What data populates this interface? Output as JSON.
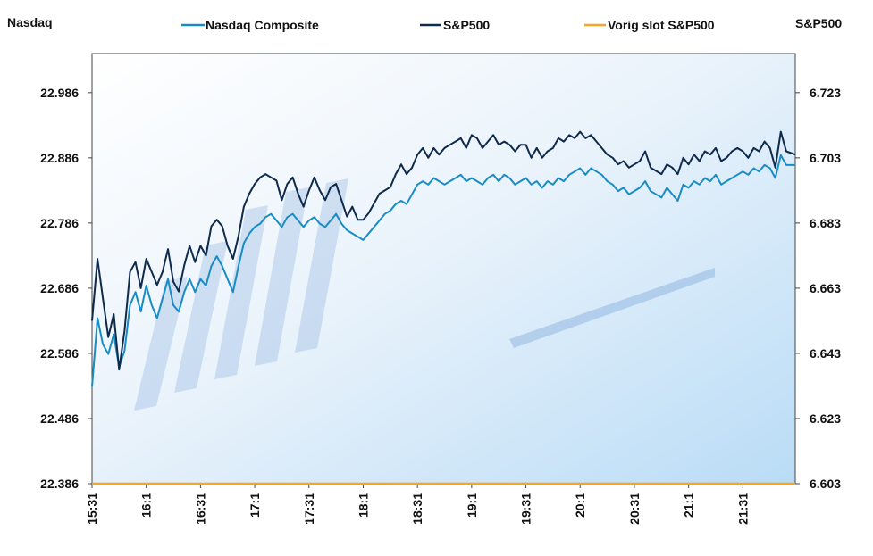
{
  "chart_data": {
    "type": "line",
    "title": "",
    "left_axis_label": "Nasdaq",
    "right_axis_label": "S&P500",
    "legend_position": "top",
    "left_ylim": [
      22386,
      23046
    ],
    "left_ticks": [
      "22.386",
      "22.486",
      "22.586",
      "22.686",
      "22.786",
      "22.886",
      "22.986"
    ],
    "right_ylim": [
      6603,
      6735
    ],
    "right_ticks": [
      "6.603",
      "6.623",
      "6.643",
      "6.663",
      "6.683",
      "6.703",
      "6.723"
    ],
    "x_range": [
      "15:31",
      "22:00"
    ],
    "x_ticks": [
      "15:31",
      "16:1",
      "16:31",
      "17:1",
      "17:31",
      "18:1",
      "18:31",
      "19:1",
      "19:31",
      "20:1",
      "20:31",
      "21:1",
      "21:31"
    ],
    "series": [
      {
        "name": "Nasdaq Composite",
        "axis": "left",
        "color": "#1a8cc4",
        "points": [
          [
            "15:31",
            22535
          ],
          [
            "15:34",
            22640
          ],
          [
            "15:37",
            22600
          ],
          [
            "15:40",
            22585
          ],
          [
            "15:43",
            22615
          ],
          [
            "15:46",
            22565
          ],
          [
            "15:49",
            22590
          ],
          [
            "15:52",
            22660
          ],
          [
            "15:55",
            22680
          ],
          [
            "15:58",
            22650
          ],
          [
            "16:01",
            22690
          ],
          [
            "16:04",
            22660
          ],
          [
            "16:07",
            22640
          ],
          [
            "16:10",
            22670
          ],
          [
            "16:13",
            22700
          ],
          [
            "16:16",
            22660
          ],
          [
            "16:19",
            22650
          ],
          [
            "16:22",
            22680
          ],
          [
            "16:25",
            22700
          ],
          [
            "16:28",
            22680
          ],
          [
            "16:31",
            22700
          ],
          [
            "16:34",
            22690
          ],
          [
            "16:37",
            22720
          ],
          [
            "16:40",
            22735
          ],
          [
            "16:43",
            22720
          ],
          [
            "16:46",
            22700
          ],
          [
            "16:49",
            22680
          ],
          [
            "16:52",
            22720
          ],
          [
            "16:55",
            22755
          ],
          [
            "16:58",
            22770
          ],
          [
            "17:01",
            22780
          ],
          [
            "17:04",
            22785
          ],
          [
            "17:07",
            22795
          ],
          [
            "17:10",
            22800
          ],
          [
            "17:13",
            22790
          ],
          [
            "17:16",
            22780
          ],
          [
            "17:19",
            22795
          ],
          [
            "17:22",
            22800
          ],
          [
            "17:25",
            22790
          ],
          [
            "17:28",
            22780
          ],
          [
            "17:31",
            22790
          ],
          [
            "17:34",
            22795
          ],
          [
            "17:37",
            22785
          ],
          [
            "17:40",
            22780
          ],
          [
            "17:43",
            22790
          ],
          [
            "17:46",
            22800
          ],
          [
            "17:49",
            22785
          ],
          [
            "17:52",
            22775
          ],
          [
            "17:55",
            22770
          ],
          [
            "17:58",
            22765
          ],
          [
            "18:01",
            22760
          ],
          [
            "18:04",
            22770
          ],
          [
            "18:07",
            22780
          ],
          [
            "18:10",
            22790
          ],
          [
            "18:13",
            22800
          ],
          [
            "18:16",
            22805
          ],
          [
            "18:19",
            22815
          ],
          [
            "18:22",
            22820
          ],
          [
            "18:25",
            22815
          ],
          [
            "18:28",
            22830
          ],
          [
            "18:31",
            22845
          ],
          [
            "18:34",
            22850
          ],
          [
            "18:37",
            22845
          ],
          [
            "18:40",
            22855
          ],
          [
            "18:43",
            22850
          ],
          [
            "18:46",
            22845
          ],
          [
            "18:49",
            22850
          ],
          [
            "18:52",
            22855
          ],
          [
            "18:55",
            22860
          ],
          [
            "18:58",
            22850
          ],
          [
            "19:01",
            22855
          ],
          [
            "19:04",
            22850
          ],
          [
            "19:07",
            22845
          ],
          [
            "19:10",
            22855
          ],
          [
            "19:13",
            22860
          ],
          [
            "19:16",
            22850
          ],
          [
            "19:19",
            22860
          ],
          [
            "19:22",
            22855
          ],
          [
            "19:25",
            22845
          ],
          [
            "19:28",
            22850
          ],
          [
            "19:31",
            22855
          ],
          [
            "19:34",
            22845
          ],
          [
            "19:37",
            22850
          ],
          [
            "19:40",
            22840
          ],
          [
            "19:43",
            22850
          ],
          [
            "19:46",
            22845
          ],
          [
            "19:49",
            22855
          ],
          [
            "19:52",
            22850
          ],
          [
            "19:55",
            22860
          ],
          [
            "19:58",
            22865
          ],
          [
            "20:01",
            22870
          ],
          [
            "20:04",
            22860
          ],
          [
            "20:07",
            22870
          ],
          [
            "20:10",
            22865
          ],
          [
            "20:13",
            22860
          ],
          [
            "20:16",
            22850
          ],
          [
            "20:19",
            22845
          ],
          [
            "20:22",
            22835
          ],
          [
            "20:25",
            22840
          ],
          [
            "20:28",
            22830
          ],
          [
            "20:31",
            22835
          ],
          [
            "20:34",
            22840
          ],
          [
            "20:37",
            22850
          ],
          [
            "20:40",
            22835
          ],
          [
            "20:43",
            22830
          ],
          [
            "20:46",
            22825
          ],
          [
            "20:49",
            22840
          ],
          [
            "20:52",
            22830
          ],
          [
            "20:55",
            22820
          ],
          [
            "20:58",
            22845
          ],
          [
            "21:01",
            22840
          ],
          [
            "21:04",
            22850
          ],
          [
            "21:07",
            22845
          ],
          [
            "21:10",
            22855
          ],
          [
            "21:13",
            22850
          ],
          [
            "21:16",
            22860
          ],
          [
            "21:19",
            22845
          ],
          [
            "21:22",
            22850
          ],
          [
            "21:25",
            22855
          ],
          [
            "21:28",
            22860
          ],
          [
            "21:31",
            22865
          ],
          [
            "21:34",
            22860
          ],
          [
            "21:37",
            22870
          ],
          [
            "21:40",
            22865
          ],
          [
            "21:43",
            22875
          ],
          [
            "21:46",
            22870
          ],
          [
            "21:49",
            22855
          ],
          [
            "21:52",
            22890
          ],
          [
            "21:55",
            22875
          ],
          [
            "22:00",
            22875
          ]
        ]
      },
      {
        "name": "S&P500",
        "axis": "right",
        "color": "#0f2a4a",
        "points": [
          [
            "15:31",
            6653
          ],
          [
            "15:34",
            6672
          ],
          [
            "15:37",
            6660
          ],
          [
            "15:40",
            6648
          ],
          [
            "15:43",
            6655
          ],
          [
            "15:46",
            6638
          ],
          [
            "15:49",
            6650
          ],
          [
            "15:52",
            6668
          ],
          [
            "15:55",
            6671
          ],
          [
            "15:58",
            6663
          ],
          [
            "16:01",
            6672
          ],
          [
            "16:04",
            6668
          ],
          [
            "16:07",
            6664
          ],
          [
            "16:10",
            6668
          ],
          [
            "16:13",
            6675
          ],
          [
            "16:16",
            6665
          ],
          [
            "16:19",
            6662
          ],
          [
            "16:22",
            6670
          ],
          [
            "16:25",
            6676
          ],
          [
            "16:28",
            6671
          ],
          [
            "16:31",
            6676
          ],
          [
            "16:34",
            6673
          ],
          [
            "16:37",
            6682
          ],
          [
            "16:40",
            6684
          ],
          [
            "16:43",
            6682
          ],
          [
            "16:46",
            6676
          ],
          [
            "16:49",
            6672
          ],
          [
            "16:52",
            6679
          ],
          [
            "16:55",
            6688
          ],
          [
            "16:58",
            6692
          ],
          [
            "17:01",
            6695
          ],
          [
            "17:04",
            6697
          ],
          [
            "17:07",
            6698
          ],
          [
            "17:10",
            6697
          ],
          [
            "17:13",
            6696
          ],
          [
            "17:16",
            6690
          ],
          [
            "17:19",
            6695
          ],
          [
            "17:22",
            6697
          ],
          [
            "17:25",
            6692
          ],
          [
            "17:28",
            6688
          ],
          [
            "17:31",
            6693
          ],
          [
            "17:34",
            6697
          ],
          [
            "17:37",
            6693
          ],
          [
            "17:40",
            6690
          ],
          [
            "17:43",
            6694
          ],
          [
            "17:46",
            6695
          ],
          [
            "17:49",
            6690
          ],
          [
            "17:52",
            6685
          ],
          [
            "17:55",
            6688
          ],
          [
            "17:58",
            6684
          ],
          [
            "18:01",
            6684
          ],
          [
            "18:04",
            6686
          ],
          [
            "18:07",
            6689
          ],
          [
            "18:10",
            6692
          ],
          [
            "18:13",
            6693
          ],
          [
            "18:16",
            6694
          ],
          [
            "18:19",
            6698
          ],
          [
            "18:22",
            6701
          ],
          [
            "18:25",
            6698
          ],
          [
            "18:28",
            6700
          ],
          [
            "18:31",
            6704
          ],
          [
            "18:34",
            6706
          ],
          [
            "18:37",
            6703
          ],
          [
            "18:40",
            6706
          ],
          [
            "18:43",
            6704
          ],
          [
            "18:46",
            6706
          ],
          [
            "18:49",
            6707
          ],
          [
            "18:52",
            6708
          ],
          [
            "18:55",
            6709
          ],
          [
            "18:58",
            6706
          ],
          [
            "19:01",
            6710
          ],
          [
            "19:04",
            6709
          ],
          [
            "19:07",
            6706
          ],
          [
            "19:10",
            6708
          ],
          [
            "19:13",
            6710
          ],
          [
            "19:16",
            6707
          ],
          [
            "19:19",
            6708
          ],
          [
            "19:22",
            6707
          ],
          [
            "19:25",
            6705
          ],
          [
            "19:28",
            6707
          ],
          [
            "19:31",
            6707
          ],
          [
            "19:34",
            6703
          ],
          [
            "19:37",
            6706
          ],
          [
            "19:40",
            6703
          ],
          [
            "19:43",
            6705
          ],
          [
            "19:46",
            6706
          ],
          [
            "19:49",
            6709
          ],
          [
            "19:52",
            6708
          ],
          [
            "19:55",
            6710
          ],
          [
            "19:58",
            6709
          ],
          [
            "20:01",
            6711
          ],
          [
            "20:04",
            6709
          ],
          [
            "20:07",
            6710
          ],
          [
            "20:10",
            6708
          ],
          [
            "20:13",
            6706
          ],
          [
            "20:16",
            6704
          ],
          [
            "20:19",
            6703
          ],
          [
            "20:22",
            6701
          ],
          [
            "20:25",
            6702
          ],
          [
            "20:28",
            6700
          ],
          [
            "20:31",
            6701
          ],
          [
            "20:34",
            6702
          ],
          [
            "20:37",
            6705
          ],
          [
            "20:40",
            6700
          ],
          [
            "20:43",
            6699
          ],
          [
            "20:46",
            6698
          ],
          [
            "20:49",
            6701
          ],
          [
            "20:52",
            6700
          ],
          [
            "20:55",
            6698
          ],
          [
            "20:58",
            6703
          ],
          [
            "21:01",
            6701
          ],
          [
            "21:04",
            6704
          ],
          [
            "21:07",
            6702
          ],
          [
            "21:10",
            6705
          ],
          [
            "21:13",
            6704
          ],
          [
            "21:16",
            6706
          ],
          [
            "21:19",
            6702
          ],
          [
            "21:22",
            6703
          ],
          [
            "21:25",
            6705
          ],
          [
            "21:28",
            6706
          ],
          [
            "21:31",
            6705
          ],
          [
            "21:34",
            6703
          ],
          [
            "21:37",
            6706
          ],
          [
            "21:40",
            6705
          ],
          [
            "21:43",
            6708
          ],
          [
            "21:46",
            6706
          ],
          [
            "21:49",
            6700
          ],
          [
            "21:52",
            6711
          ],
          [
            "21:55",
            6705
          ],
          [
            "22:00",
            6704
          ]
        ]
      },
      {
        "name": "Vorig slot S&P500",
        "axis": "right",
        "color": "#f5a623",
        "points": [
          [
            "15:31",
            6603
          ],
          [
            "22:00",
            6603
          ]
        ]
      }
    ]
  }
}
